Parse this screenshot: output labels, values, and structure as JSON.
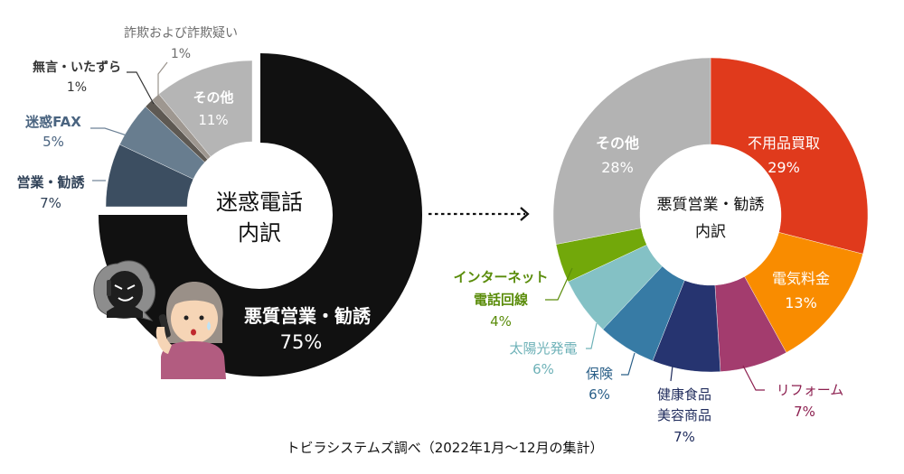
{
  "chart_data": [
    {
      "type": "pie",
      "variant": "donut",
      "title": "迷惑電話",
      "subtitle": "内訳",
      "unit": "%",
      "slices": [
        {
          "label": "悪質営業・勧誘",
          "value": 75,
          "color": "#111111",
          "label_color": "#ffffff",
          "label_placement": "inside"
        },
        {
          "label": "営業・勧誘",
          "value": 7,
          "color": "#3c4e61",
          "label_color": "#2f4157",
          "label_placement": "outside",
          "exploded": true
        },
        {
          "label": "迷惑FAX",
          "value": 5,
          "color": "#687d8f",
          "label_color": "#4a6480",
          "label_placement": "outside",
          "exploded": true
        },
        {
          "label": "無言・いたずら",
          "value": 1,
          "color": "#5e5953",
          "label_color": "#333333",
          "label_placement": "outside",
          "exploded": true
        },
        {
          "label": "詐欺および詐欺疑い",
          "value": 1,
          "color": "#9e9790",
          "label_color": "#6e6e6e",
          "label_placement": "outside",
          "exploded": true
        },
        {
          "label": "その他",
          "value": 11,
          "color": "#b5b5b5",
          "label_color": "#ffffff",
          "label_placement": "inside",
          "exploded": true
        }
      ]
    },
    {
      "type": "pie",
      "variant": "donut",
      "title": "悪質営業・勧誘",
      "subtitle": "内訳",
      "unit": "%",
      "slices": [
        {
          "label": "不用品買取",
          "value": 29,
          "color": "#e03a1c",
          "label_color": "#ffffff",
          "label_placement": "inside"
        },
        {
          "label": "電気料金",
          "value": 13,
          "color": "#f98c00",
          "label_color": "#ffffff",
          "label_placement": "inside"
        },
        {
          "label": "リフォーム",
          "value": 7,
          "color": "#a33c6e",
          "label_color": "#8c1f4f",
          "label_placement": "outside"
        },
        {
          "label": "健康食品\n美容商品",
          "value": 7,
          "color": "#263470",
          "label_color": "#1f2b5c",
          "label_placement": "outside"
        },
        {
          "label": "保険",
          "value": 6,
          "color": "#377ba5",
          "label_color": "#2a5f88",
          "label_placement": "outside"
        },
        {
          "label": "太陽光発電",
          "value": 6,
          "color": "#84c1c5",
          "label_color": "#6fb2b8",
          "label_placement": "outside"
        },
        {
          "label": "インターネット\n電話回線",
          "value": 4,
          "color": "#72a80a",
          "label_color": "#5a8c0a",
          "label_placement": "outside"
        },
        {
          "label": "その他",
          "value": 28,
          "color": "#b3b3b3",
          "label_color": "#ffffff",
          "label_placement": "inside"
        }
      ]
    }
  ],
  "labels": {
    "left_center_line1": "迷惑電話",
    "left_center_line2": "内訳",
    "right_center_line1": "悪質営業・勧誘",
    "right_center_line2": "内訳",
    "l_main_name": "悪質営業・勧誘",
    "l_main_pct": "75%",
    "l_eigyo_name": "営業・勧誘",
    "l_eigyo_pct": "7%",
    "l_fax_name": "迷惑FAX",
    "l_fax_pct": "5%",
    "l_mugon_name": "無言・いたずら",
    "l_mugon_pct": "1%",
    "l_sagi_name": "詐欺および詐欺疑い",
    "l_sagi_pct": "1%",
    "l_other_name": "その他",
    "l_other_pct": "11%",
    "r_fuyo_name": "不用品買取",
    "r_fuyo_pct": "29%",
    "r_denki_name": "電気料金",
    "r_denki_pct": "13%",
    "r_reform_name": "リフォーム",
    "r_reform_pct": "7%",
    "r_kenko_name1": "健康食品",
    "r_kenko_name2": "美容商品",
    "r_kenko_pct": "7%",
    "r_hoken_name": "保険",
    "r_hoken_pct": "6%",
    "r_solar_name": "太陽光発電",
    "r_solar_pct": "6%",
    "r_net_name1": "インターネット",
    "r_net_name2": "電話回線",
    "r_net_pct": "4%",
    "r_other_name": "その他",
    "r_other_pct": "28%"
  },
  "footer": "トビラシステムズ調べ（2022年1月〜12月の集計）",
  "illustration": "elderly-woman-receiving-suspicious-call"
}
